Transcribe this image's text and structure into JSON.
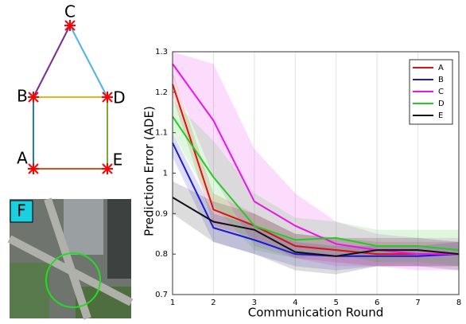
{
  "diagram": {
    "nodes": [
      {
        "label": "C"
      },
      {
        "label": "B"
      },
      {
        "label": "D"
      },
      {
        "label": "A"
      },
      {
        "label": "E"
      }
    ],
    "image_label": "F"
  },
  "chart_data": {
    "type": "line",
    "ylabel": "Prediction Error (ADE)",
    "xlabel": "Communication Round",
    "x": [
      1,
      2,
      3,
      4,
      5,
      6,
      7,
      8
    ],
    "xlim": [
      1,
      8
    ],
    "xticks": [
      1,
      2,
      3,
      4,
      5,
      6,
      7,
      8
    ],
    "ylim": [
      0.7,
      1.3
    ],
    "yticks": [
      0.7,
      0.8,
      0.9,
      1,
      1.1,
      1.2,
      1.3
    ],
    "grid": true,
    "legend": "upper right",
    "series": [
      {
        "name": "A",
        "color": "#dd1111",
        "values": [
          1.22,
          0.91,
          0.87,
          0.82,
          0.81,
          0.8,
          0.8,
          0.8
        ],
        "upper": [
          1.25,
          0.95,
          0.9,
          0.85,
          0.84,
          0.83,
          0.83,
          0.83
        ],
        "lower": [
          1.19,
          0.87,
          0.84,
          0.79,
          0.78,
          0.77,
          0.77,
          0.77
        ]
      },
      {
        "name": "B",
        "color": "#1a1ad4",
        "values": [
          1.075,
          0.865,
          0.835,
          0.8,
          0.795,
          0.795,
          0.795,
          0.8
        ],
        "upper": [
          1.1,
          0.9,
          0.87,
          0.83,
          0.82,
          0.82,
          0.82,
          0.83
        ],
        "lower": [
          1.04,
          0.83,
          0.8,
          0.77,
          0.76,
          0.77,
          0.77,
          0.77
        ]
      },
      {
        "name": "C",
        "color": "#ee11ee",
        "values": [
          1.27,
          1.13,
          0.93,
          0.87,
          0.825,
          0.81,
          0.8,
          0.8
        ],
        "upper": [
          1.3,
          1.27,
          1.06,
          0.95,
          0.88,
          0.85,
          0.84,
          0.84
        ],
        "lower": [
          1.24,
          0.99,
          0.82,
          0.79,
          0.77,
          0.77,
          0.76,
          0.76
        ]
      },
      {
        "name": "D",
        "color": "#22cc22",
        "values": [
          1.14,
          0.99,
          0.87,
          0.835,
          0.84,
          0.82,
          0.82,
          0.81
        ],
        "upper": [
          1.18,
          1.08,
          0.95,
          0.89,
          0.88,
          0.86,
          0.86,
          0.86
        ],
        "lower": [
          1.1,
          0.92,
          0.81,
          0.79,
          0.8,
          0.78,
          0.78,
          0.77
        ]
      },
      {
        "name": "E",
        "color": "#111111",
        "values": [
          0.94,
          0.88,
          0.86,
          0.805,
          0.795,
          0.81,
          0.81,
          0.8
        ],
        "upper": [
          0.98,
          0.93,
          0.9,
          0.85,
          0.84,
          0.84,
          0.84,
          0.83
        ],
        "lower": [
          0.9,
          0.83,
          0.8,
          0.76,
          0.75,
          0.77,
          0.77,
          0.76
        ]
      }
    ]
  }
}
